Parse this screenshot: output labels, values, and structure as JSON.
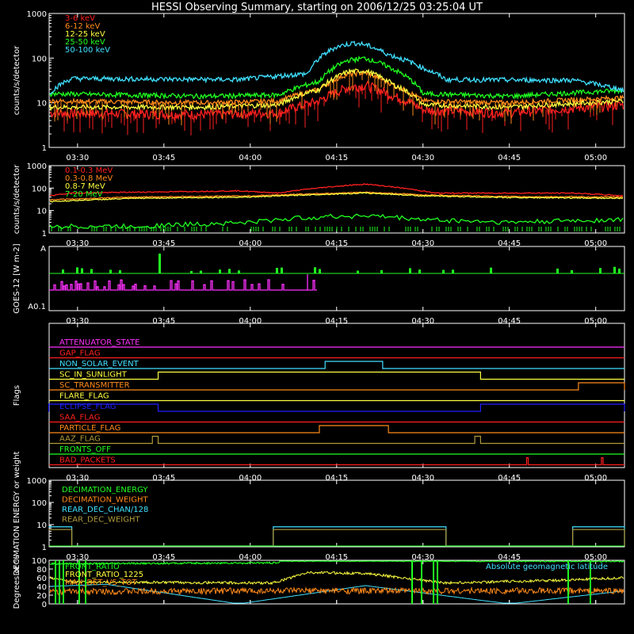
{
  "title": "HESSI Observing Summary, starting on 2006/12/25 03:25:04 UT",
  "time_ticks": [
    "03:30",
    "03:45",
    "04:00",
    "04:15",
    "04:30",
    "04:45",
    "05:00"
  ],
  "time_range": [
    "03:25:04",
    "05:05"
  ],
  "colors": {
    "red": "#ff2020",
    "orange": "#ff8a1a",
    "yellow": "#ffff40",
    "green": "#20ff20",
    "cyan": "#40e0ff",
    "magenta": "#ff30ff",
    "blue": "#2020ff",
    "olive": "#b09a3a",
    "white": "#ffffff"
  },
  "chart_data": [
    {
      "type": "line",
      "ylabel": "counts/s/detector",
      "yscale": "log",
      "ylim": [
        1,
        1000
      ],
      "y_ticks": [
        "1",
        "10",
        "100",
        "1000"
      ],
      "legend": [
        "3-6 keV",
        "6-12 keV",
        "12-25 keV",
        "25-50 keV",
        "50-100 keV"
      ],
      "series": [
        {
          "name": "3-6 keV",
          "color": "#ff2020",
          "x": [
            "03:25",
            "03:52",
            "04:05",
            "04:12",
            "04:17",
            "04:20",
            "04:25",
            "04:30",
            "04:45",
            "05:05"
          ],
          "values": [
            6,
            5.5,
            6,
            11,
            22,
            25,
            14,
            7,
            6,
            9
          ]
        },
        {
          "name": "6-12 keV",
          "color": "#ff8a1a",
          "x": [
            "03:25",
            "03:52",
            "04:05",
            "04:12",
            "04:17",
            "04:20",
            "04:25",
            "04:30",
            "04:45",
            "05:05"
          ],
          "values": [
            11,
            10,
            11,
            20,
            44,
            47,
            24,
            11,
            10,
            13
          ]
        },
        {
          "name": "12-25 keV",
          "color": "#ffff40",
          "x": [
            "03:25",
            "03:52",
            "04:05",
            "04:12",
            "04:17",
            "04:20",
            "04:25",
            "04:30",
            "04:45",
            "05:05"
          ],
          "values": [
            8,
            8,
            9,
            20,
            50,
            52,
            25,
            9,
            8,
            11
          ]
        },
        {
          "name": "25-50 keV",
          "color": "#20ff20",
          "x": [
            "03:25",
            "03:52",
            "04:05",
            "04:12",
            "04:17",
            "04:20",
            "04:25",
            "04:30",
            "04:45",
            "05:05"
          ],
          "values": [
            16,
            14,
            15,
            30,
            90,
            100,
            55,
            16,
            14,
            19
          ]
        },
        {
          "name": "50-100 keV",
          "color": "#40e0ff",
          "x": [
            "03:25",
            "03:29",
            "03:58",
            "04:10",
            "04:15",
            "04:18",
            "04:20",
            "04:24",
            "04:30",
            "04:34",
            "04:56",
            "05:05"
          ],
          "values": [
            16,
            35,
            33,
            45,
            180,
            220,
            200,
            120,
            60,
            33,
            32,
            19
          ]
        }
      ]
    },
    {
      "type": "line",
      "ylabel": "counts/s/detector",
      "yscale": "log",
      "ylim": [
        1,
        1000
      ],
      "y_ticks": [
        "1",
        "10",
        "100",
        "1000"
      ],
      "legend": [
        "0.1-0.3 MeV",
        "0.3-0.8 MeV",
        "0.8-7 MeV",
        "7-20 MeV"
      ],
      "series": [
        {
          "name": "0.1-0.3 MeV",
          "color": "#ff2020",
          "x": [
            "03:25",
            "03:29",
            "03:58",
            "04:05",
            "04:15",
            "04:20",
            "04:25",
            "04:32",
            "04:56",
            "05:05"
          ],
          "values": [
            45,
            60,
            75,
            60,
            120,
            150,
            110,
            60,
            60,
            45
          ]
        },
        {
          "name": "0.3-0.8 MeV",
          "color": "#ff8a1a",
          "x": [
            "03:25",
            "03:40",
            "04:00",
            "04:10",
            "04:20",
            "04:30",
            "04:45",
            "05:05"
          ],
          "values": [
            30,
            40,
            45,
            55,
            65,
            50,
            42,
            40
          ]
        },
        {
          "name": "0.8-7 MeV",
          "color": "#ffff40",
          "x": [
            "03:25",
            "03:40",
            "04:00",
            "04:10",
            "04:20",
            "04:30",
            "04:45",
            "05:05"
          ],
          "values": [
            25,
            35,
            40,
            50,
            60,
            45,
            38,
            35
          ]
        },
        {
          "name": "7-20 MeV",
          "color": "#20ff20",
          "x": [
            "03:25",
            "03:40",
            "04:00",
            "04:10",
            "04:20",
            "04:30",
            "04:45",
            "05:05"
          ],
          "values": [
            2,
            2,
            3,
            5,
            6,
            4,
            3,
            4
          ]
        }
      ]
    },
    {
      "type": "line",
      "ylabel": "GOES-12 [W m-2]",
      "y_ticks": [
        "A",
        "A0.1"
      ],
      "series": [
        {
          "name": "GOES long",
          "color": "#20ff20"
        },
        {
          "name": "GOES short",
          "color": "#ff30ff"
        }
      ]
    },
    {
      "type": "line",
      "ylabel": "Flags",
      "legend": [
        "ATTENUATOR_STATE",
        "GAP_FLAG",
        "NON_SOLAR_EVENT",
        "SC_IN_SUNLIGHT",
        "SC_TRANSMITTER",
        "FLARE_FLAG",
        "ECLIPSE_FLAG",
        "SAA_FLAG",
        "PARTICLE_FLAG",
        "AAZ_FLAG",
        "FRONTS_OFF",
        "BAD_PACKETS"
      ],
      "series": [
        {
          "name": "ATTENUATOR_STATE",
          "color": "#ff30ff",
          "on": []
        },
        {
          "name": "GAP_FLAG",
          "color": "#ff2020",
          "on": []
        },
        {
          "name": "NON_SOLAR_EVENT",
          "color": "#40e0ff",
          "on": [
            [
              "04:13",
              "04:23"
            ]
          ]
        },
        {
          "name": "SC_IN_SUNLIGHT",
          "color": "#ffff40",
          "on": [
            [
              "03:44",
              "04:40"
            ]
          ]
        },
        {
          "name": "SC_TRANSMITTER",
          "color": "#ff8a1a",
          "on": [
            [
              "04:57",
              "05:05"
            ]
          ]
        },
        {
          "name": "FLARE_FLAG",
          "color": "#ffff40",
          "on": []
        },
        {
          "name": "ECLIPSE_FLAG",
          "color": "#2020ff",
          "on": [
            [
              "03:25",
              "03:44"
            ],
            [
              "04:40",
              "05:05"
            ]
          ]
        },
        {
          "name": "SAA_FLAG",
          "color": "#ff2020",
          "on": []
        },
        {
          "name": "PARTICLE_FLAG",
          "color": "#ff8a1a",
          "on": [
            [
              "04:12",
              "04:24"
            ]
          ]
        },
        {
          "name": "AAZ_FLAG",
          "color": "#b09a3a",
          "on": [
            [
              "03:43",
              "03:44"
            ],
            [
              "04:39",
              "04:40"
            ]
          ]
        },
        {
          "name": "FRONTS_OFF",
          "color": "#20ff20",
          "on": []
        },
        {
          "name": "BAD_PACKETS",
          "color": "#ff2020",
          "on": [
            [
              "04:48",
              "04:48"
            ],
            [
              "05:01",
              "05:01"
            ]
          ]
        }
      ]
    },
    {
      "type": "line",
      "ylabel": "DECIMATION ENERGY or weight",
      "yscale": "log",
      "ylim": [
        1,
        1000
      ],
      "y_ticks": [
        "1",
        "10",
        "100",
        "1000"
      ],
      "legend": [
        "DECIMATION_ENERGY",
        "DECIMATION_WEIGHT",
        "REAR_DEC_CHAN/128",
        "REAR_DEC_WEIGHT"
      ],
      "series": [
        {
          "name": "DECIMATION_ENERGY",
          "color": "#20ff20"
        },
        {
          "name": "DECIMATION_WEIGHT",
          "color": "#ff8a1a"
        },
        {
          "name": "REAR_DEC_CHAN/128",
          "color": "#40e0ff",
          "on": [
            [
              "03:25",
              "03:29"
            ],
            [
              "04:04",
              "04:34"
            ],
            [
              "04:56",
              "05:05"
            ]
          ],
          "values": [
            8,
            1
          ]
        },
        {
          "name": "REAR_DEC_WEIGHT",
          "color": "#b09a3a",
          "on": [
            [
              "03:25",
              "03:29"
            ],
            [
              "04:04",
              "04:34"
            ],
            [
              "04:56",
              "05:05"
            ]
          ],
          "values": [
            6,
            1
          ]
        }
      ]
    },
    {
      "type": "line",
      "ylabel": "Degrees or %",
      "ylim": [
        0,
        100
      ],
      "y_ticks": [
        "0",
        "20",
        "40",
        "60",
        "80",
        "100"
      ],
      "legend": [
        "FRONT_RATIO",
        "FRONT_RATIO_1225",
        "MAX_DET_VS_TOT"
      ],
      "right_label": "Absolute geomagnetic latitude",
      "series": [
        {
          "name": "FRONT_RATIO",
          "color": "#20ff20",
          "x": [
            "03:25",
            "04:05",
            "04:05",
            "05:05"
          ],
          "values": [
            92,
            94,
            99,
            98
          ]
        },
        {
          "name": "FRONT_RATIO_1225",
          "color": "#ffff40",
          "x": [
            "03:25",
            "03:29",
            "04:04",
            "04:10",
            "04:20",
            "04:34",
            "04:56",
            "05:05"
          ],
          "values": [
            60,
            50,
            48,
            72,
            70,
            48,
            55,
            60
          ]
        },
        {
          "name": "MAX_DET_VS_TOT",
          "color": "#ff8a1a",
          "x": [
            "03:25",
            "04:00",
            "04:30",
            "05:05"
          ],
          "values": [
            28,
            30,
            30,
            30
          ]
        },
        {
          "name": "Absolute geomagnetic latitude",
          "color": "#40e0ff",
          "x": [
            "03:25",
            "03:35",
            "03:58",
            "04:20",
            "04:45",
            "05:05"
          ],
          "values": [
            40,
            45,
            0,
            42,
            0,
            30
          ]
        }
      ]
    }
  ]
}
